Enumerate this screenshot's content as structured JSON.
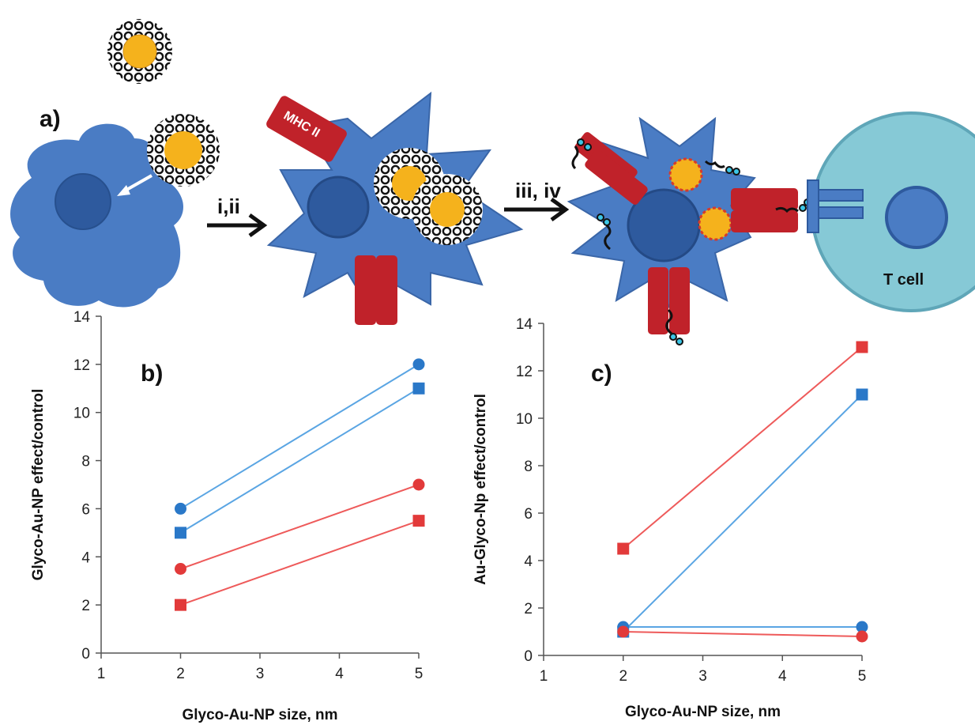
{
  "diagram": {
    "panel_label": "a)",
    "step1_label": "i,ii",
    "step2_label": "iii, iv",
    "mhc_label": "MHC II",
    "tcell_label": "T cell"
  },
  "colors": {
    "cell_blue": "#4a7cc4",
    "nucleus": "#2e5a9e",
    "mhc_red": "#c0222a",
    "gold": "#f5b21c",
    "tcell": "#86c9d6",
    "series_blue": "#5aa5e3",
    "series_red": "#ee5a5a",
    "marker_blue": "#2a78c8",
    "marker_red": "#e23a3a"
  },
  "chart_data": [
    {
      "type": "line",
      "panel_label": "b)",
      "xlabel": "Glyco-Au-NP size, nm",
      "ylabel": "Glyco-Au-NP effect/control",
      "xlim": [
        1,
        5
      ],
      "ylim": [
        0,
        14
      ],
      "xticks": [
        "1",
        "2",
        "3",
        "4",
        "5"
      ],
      "yticks": [
        "0",
        "2",
        "4",
        "6",
        "8",
        "10",
        "12",
        "14"
      ],
      "x": [
        2,
        5
      ],
      "series": [
        {
          "color": "blue",
          "marker": "circle",
          "values": [
            6,
            12
          ]
        },
        {
          "color": "blue",
          "marker": "square",
          "values": [
            5,
            11
          ]
        },
        {
          "color": "red",
          "marker": "circle",
          "values": [
            3.5,
            7
          ]
        },
        {
          "color": "red",
          "marker": "square",
          "values": [
            2,
            5.5
          ]
        }
      ]
    },
    {
      "type": "line",
      "panel_label": "c)",
      "xlabel": "Glyco-Au-NP size, nm",
      "ylabel": "Au-Glyco-Np effect/control",
      "xlim": [
        1,
        5
      ],
      "ylim": [
        0,
        14
      ],
      "xticks": [
        "1",
        "2",
        "3",
        "4",
        "5"
      ],
      "yticks": [
        "0",
        "2",
        "4",
        "6",
        "8",
        "10",
        "12",
        "14"
      ],
      "x": [
        2,
        5
      ],
      "series": [
        {
          "color": "red",
          "marker": "square",
          "values": [
            4.5,
            13
          ]
        },
        {
          "color": "blue",
          "marker": "square",
          "values": [
            1,
            11
          ]
        },
        {
          "color": "blue",
          "marker": "circle",
          "values": [
            1.2,
            1.2
          ]
        },
        {
          "color": "red",
          "marker": "circle",
          "values": [
            1,
            0.8
          ]
        }
      ]
    }
  ]
}
